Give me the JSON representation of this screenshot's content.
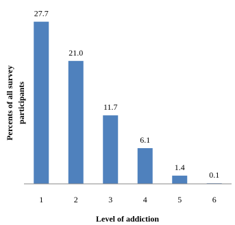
{
  "chart_data": {
    "type": "bar",
    "categories": [
      "1",
      "2",
      "3",
      "4",
      "5",
      "6"
    ],
    "values": [
      27.7,
      21.0,
      11.7,
      6.1,
      1.4,
      0.1
    ],
    "data_labels": [
      "27.7",
      "21.0",
      "11.7",
      "6.1",
      "1.4",
      "0.1"
    ],
    "title": "",
    "xlabel": "Level of addiction",
    "ylabel_lines": [
      "Percents of all survey",
      "participants"
    ],
    "ylim": [
      0,
      30
    ],
    "grid": false,
    "legend": "none",
    "bar_color": "#4f81bd"
  }
}
